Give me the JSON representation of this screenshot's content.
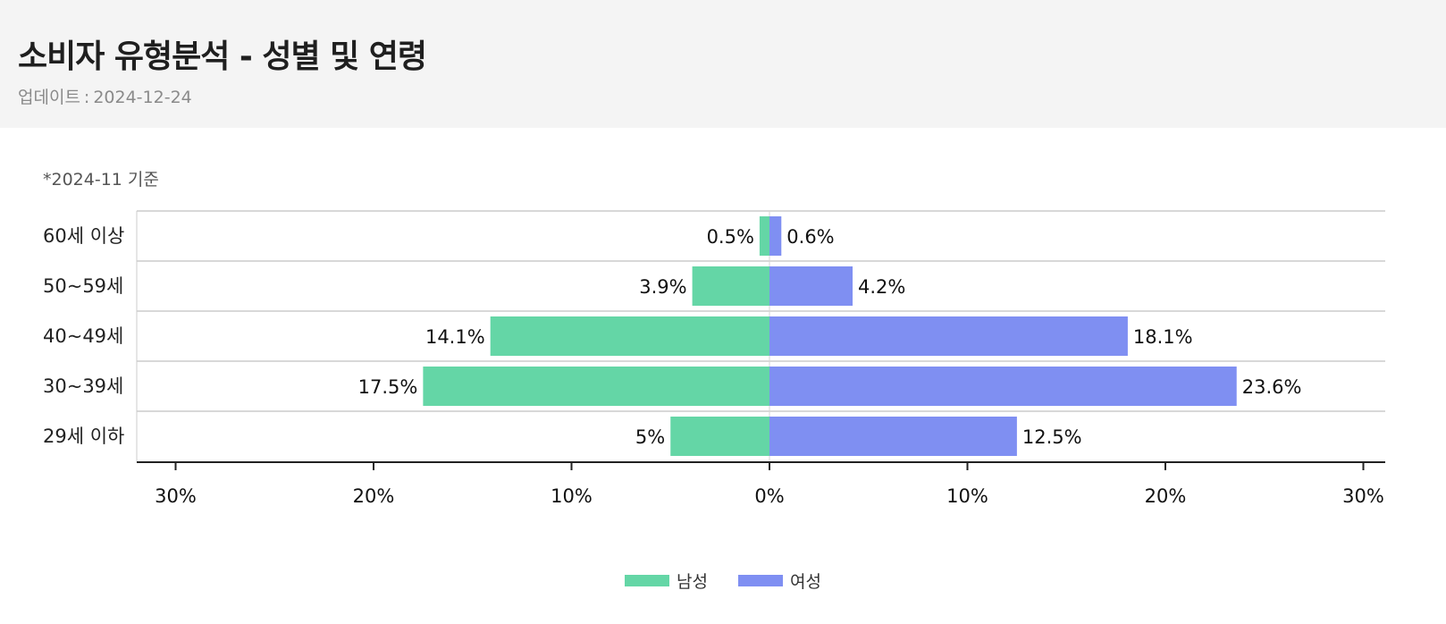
{
  "header": {
    "title": "소비자 유형분석 - 성별 및 연령",
    "updated_label": "업데이트",
    "updated_sep": ":",
    "updated_date": "2024-12-24"
  },
  "note": "*2024-11 기준",
  "colors": {
    "male": "#64d6a6",
    "female": "#7f8ff2",
    "header_bg": "#f4f4f4",
    "grid": "#cccccc",
    "axis": "#222222"
  },
  "chart_data": {
    "type": "bar",
    "orientation": "horizontal-diverging",
    "categories": [
      "60세 이상",
      "50~59세",
      "40~49세",
      "30~39세",
      "29세 이하"
    ],
    "series": [
      {
        "name": "남성",
        "values": [
          0.5,
          3.9,
          14.1,
          17.5,
          5
        ],
        "labels": [
          "0.5%",
          "3.9%",
          "14.1%",
          "17.5%",
          "5%"
        ],
        "direction": "left"
      },
      {
        "name": "여성",
        "values": [
          0.6,
          4.2,
          18.1,
          23.6,
          12.5
        ],
        "labels": [
          "0.6%",
          "4.2%",
          "18.1%",
          "23.6%",
          "12.5%"
        ],
        "direction": "right"
      }
    ],
    "x_ticks": [
      -30,
      -20,
      -10,
      0,
      10,
      20,
      30
    ],
    "x_tick_labels": [
      "30%",
      "20%",
      "10%",
      "0%",
      "10%",
      "20%",
      "30%"
    ],
    "xlim": [
      -31,
      31
    ],
    "unit": "%",
    "grid": true,
    "legend": "bottom-center"
  }
}
